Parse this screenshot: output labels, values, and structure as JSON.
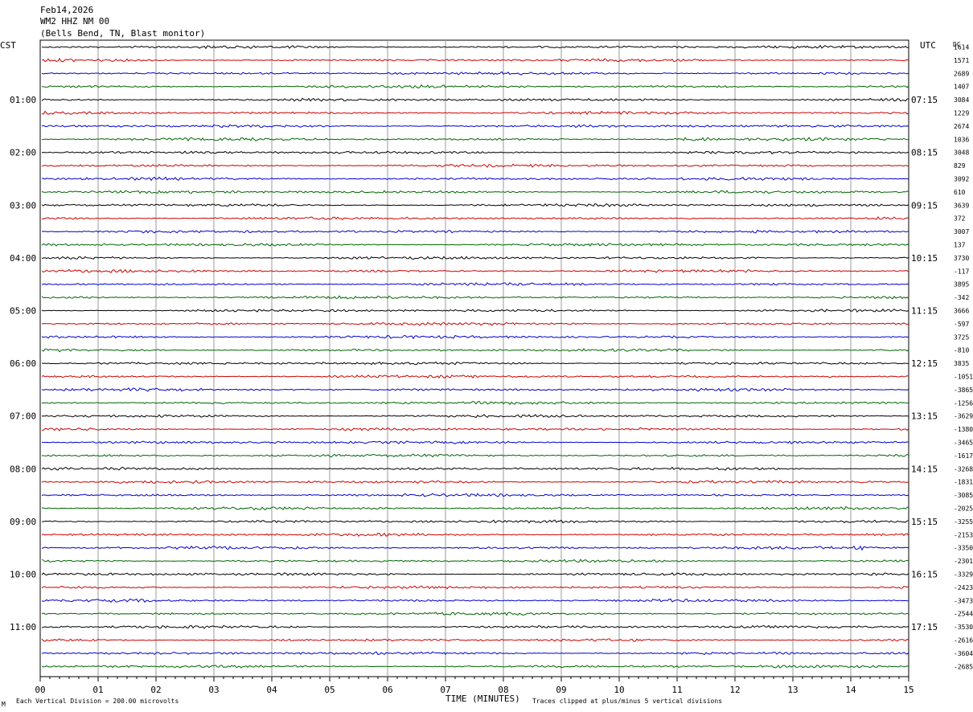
{
  "header": {
    "date": "Feb14,2026",
    "station": "WM2 HHZ NM 00",
    "location": "(Bells Bend, TN, Blast monitor)"
  },
  "chart_data": {
    "type": "line",
    "title": "",
    "xlabel": "TIME (MINUTES)",
    "left_axis_title": "CST",
    "right_axis_title": "UTC",
    "dc_title": "DC",
    "x_ticks": [
      "00",
      "01",
      "02",
      "03",
      "04",
      "05",
      "06",
      "07",
      "08",
      "09",
      "10",
      "11",
      "12",
      "13",
      "14",
      "15"
    ],
    "xlim": [
      0,
      15
    ],
    "left_hour_labels": [
      "01:00",
      "02:00",
      "03:00",
      "04:00",
      "05:00",
      "06:00",
      "07:00",
      "08:00",
      "09:00",
      "10:00",
      "11:00"
    ],
    "right_hour_labels": [
      "07:15",
      "08:15",
      "09:15",
      "10:15",
      "11:15",
      "12:15",
      "13:15",
      "14:15",
      "15:15",
      "16:15",
      "17:15"
    ],
    "trace_colors": [
      "#000000",
      "#cc0000",
      "#0000cc",
      "#006600"
    ],
    "trace_count": 48,
    "dc_offsets": [
      "1614",
      "1571",
      "2689",
      "1407",
      "3084",
      "1229",
      "2674",
      "1036",
      "3048",
      "829",
      "3092",
      "610",
      "3639",
      "372",
      "3007",
      "137",
      "3730",
      "-117",
      "3895",
      "-342",
      "3666",
      "-597",
      "3725",
      "-810",
      "3835",
      "-1051",
      "-3865",
      "-1256",
      "-3629",
      "-1380",
      "-3465",
      "-1617",
      "-3268",
      "-1831",
      "-3085",
      "-2025",
      "-3255",
      "-2153",
      "-3350",
      "-2301",
      "-3329",
      "-2423",
      "-3473",
      "-2544",
      "-3530",
      "-2616",
      "-3604",
      "-2685"
    ],
    "events": [
      {
        "trace": 7,
        "minute_start": 10.95,
        "minute_end": 11.55,
        "amplitude": 2.2
      },
      {
        "trace": 25,
        "minute_start": 13.6,
        "minute_end": 13.65,
        "amplitude": 6
      },
      {
        "trace": 38,
        "minute_start": 14.0,
        "minute_end": 14.3,
        "amplitude": 1.6
      }
    ],
    "grid": true
  },
  "footer": {
    "scale_note": "Each Vertical Division =  200.00 microvolts",
    "clip_note": "Traces clipped at plus/minus 5 vertical divisions",
    "corner_mark": "M"
  }
}
